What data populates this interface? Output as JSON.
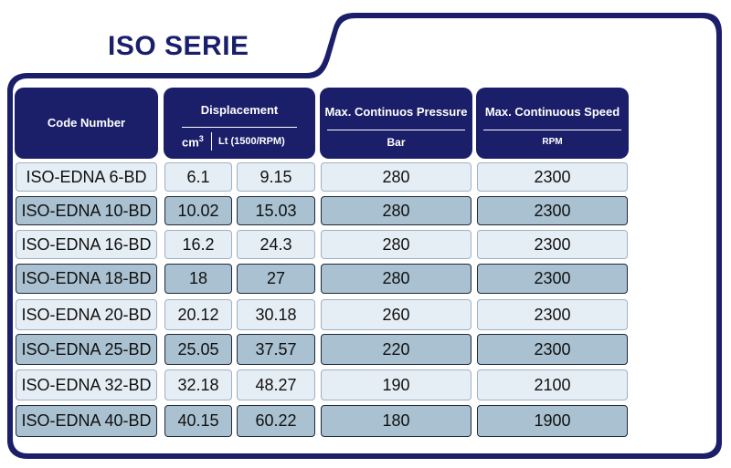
{
  "title": "ISO SERIE",
  "headers": {
    "code": "Code Number",
    "displacement": "Displacement",
    "cm3_base": "cm",
    "cm3_sup": "3",
    "lt": "Lt (1500/RPM)",
    "pressure": "Max. Continuos Pressure",
    "pressure_unit": "Bar",
    "speed": "Max. Continuous Speed",
    "speed_unit": "RPM"
  },
  "rows": [
    {
      "code": "ISO-EDNA 6-BD",
      "cm3": "6.1",
      "lt": "9.15",
      "bar": "280",
      "rpm": "2300"
    },
    {
      "code": "ISO-EDNA 10-BD",
      "cm3": "10.02",
      "lt": "15.03",
      "bar": "280",
      "rpm": "2300"
    },
    {
      "code": "ISO-EDNA 16-BD",
      "cm3": "16.2",
      "lt": "24.3",
      "bar": "280",
      "rpm": "2300"
    },
    {
      "code": "ISO-EDNA 18-BD",
      "cm3": "18",
      "lt": "27",
      "bar": "280",
      "rpm": "2300"
    },
    {
      "code": "ISO-EDNA 20-BD",
      "cm3": "20.12",
      "lt": "30.18",
      "bar": "260",
      "rpm": "2300"
    },
    {
      "code": "ISO-EDNA 25-BD",
      "cm3": "25.05",
      "lt": "37.57",
      "bar": "220",
      "rpm": "2300"
    },
    {
      "code": "ISO-EDNA 32-BD",
      "cm3": "32.18",
      "lt": "48.27",
      "bar": "190",
      "rpm": "2100"
    },
    {
      "code": "ISO-EDNA 40-BD",
      "cm3": "40.15",
      "lt": "60.22",
      "bar": "180",
      "rpm": "1900"
    }
  ]
}
